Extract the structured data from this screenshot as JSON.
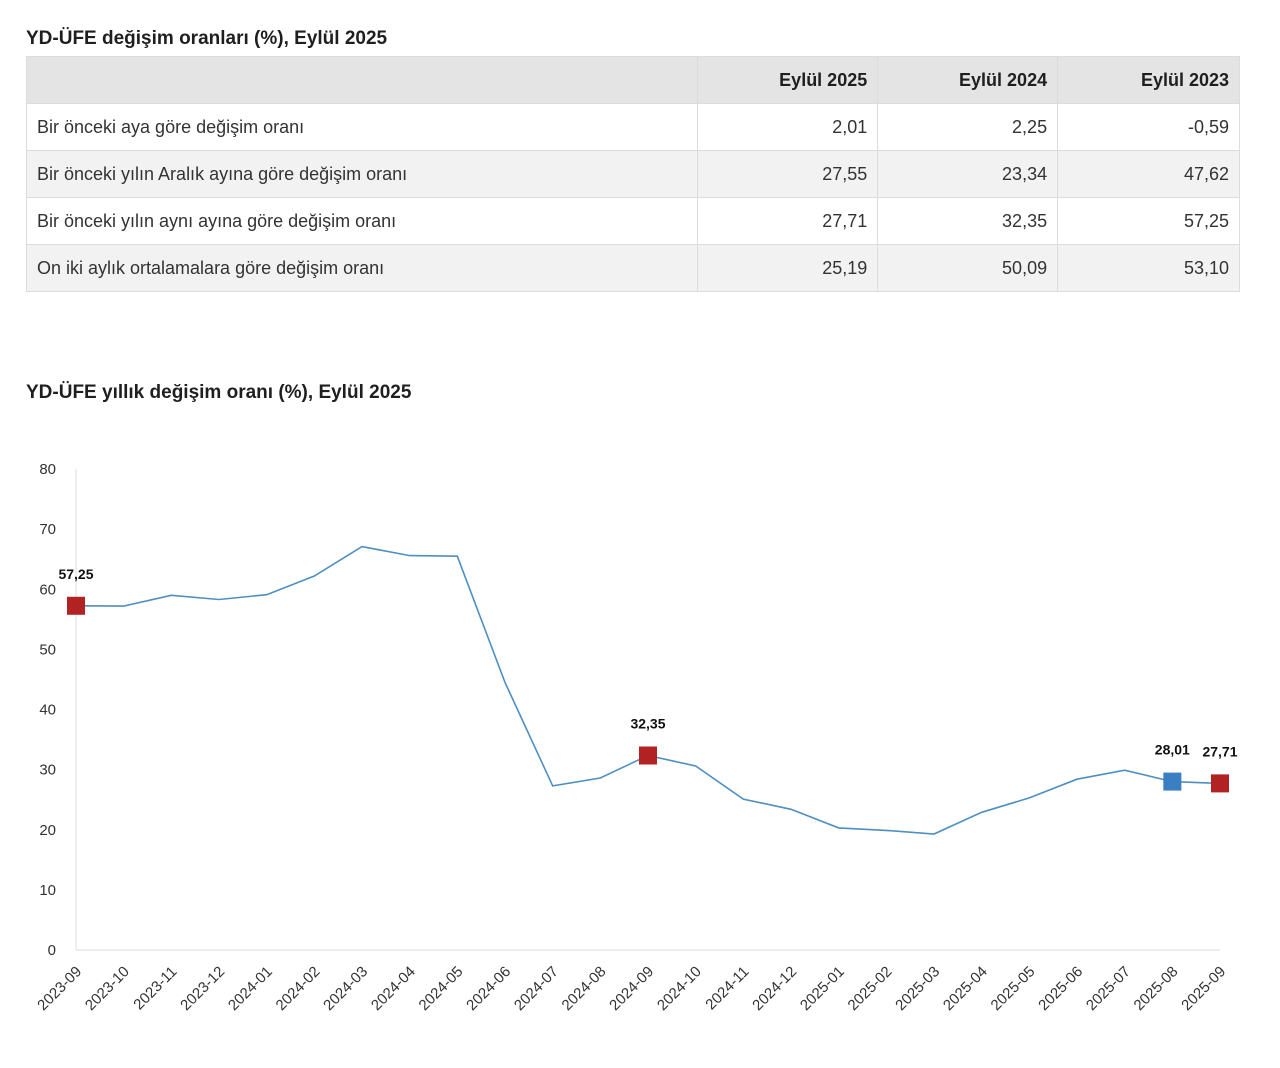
{
  "table": {
    "title": "YD-ÜFE değişim oranları (%), Eylül 2025",
    "headers": [
      "",
      "Eylül 2025",
      "Eylül 2024",
      "Eylül 2023"
    ],
    "rows": [
      {
        "label": "Bir önceki aya göre değişim oranı",
        "values": [
          "2,01",
          "2,25",
          "-0,59"
        ]
      },
      {
        "label": "Bir önceki yılın Aralık ayına göre değişim oranı",
        "values": [
          "27,55",
          "23,34",
          "47,62"
        ]
      },
      {
        "label": "Bir önceki yılın aynı ayına göre değişim oranı",
        "values": [
          "27,71",
          "32,35",
          "57,25"
        ]
      },
      {
        "label": "On iki aylık ortalamalara göre değişim oranı",
        "values": [
          "25,19",
          "50,09",
          "53,10"
        ]
      }
    ]
  },
  "chart_data": {
    "type": "line",
    "title": "YD-ÜFE yıllık değişim oranı (%), Eylül 2025",
    "xlabel": "",
    "ylabel": "",
    "ylim": [
      0,
      80
    ],
    "yticks": [
      0,
      10,
      20,
      30,
      40,
      50,
      60,
      70,
      80
    ],
    "grid": false,
    "categories": [
      "2023-09",
      "2023-10",
      "2023-11",
      "2023-12",
      "2024-01",
      "2024-02",
      "2024-03",
      "2024-04",
      "2024-05",
      "2024-06",
      "2024-07",
      "2024-08",
      "2024-09",
      "2024-10",
      "2024-11",
      "2024-12",
      "2025-01",
      "2025-02",
      "2025-03",
      "2025-04",
      "2025-05",
      "2025-06",
      "2025-07",
      "2025-08",
      "2025-09"
    ],
    "series": [
      {
        "name": "YD-ÜFE yıllık değişim oranı",
        "color": "#4f8fc0",
        "values": [
          57.25,
          57.2,
          59.0,
          58.3,
          59.1,
          62.2,
          67.1,
          65.6,
          65.5,
          44.5,
          27.3,
          28.6,
          32.35,
          30.6,
          25.1,
          23.4,
          20.3,
          19.9,
          19.3,
          22.9,
          25.3,
          28.4,
          29.9,
          28.01,
          27.71
        ]
      }
    ],
    "markers": [
      {
        "index": 0,
        "label": "57,25",
        "color": "#b22222"
      },
      {
        "index": 12,
        "label": "32,35",
        "color": "#b22222"
      },
      {
        "index": 23,
        "label": "28,01",
        "color": "#3a7fc1"
      },
      {
        "index": 24,
        "label": "27,71",
        "color": "#b22222"
      }
    ]
  }
}
